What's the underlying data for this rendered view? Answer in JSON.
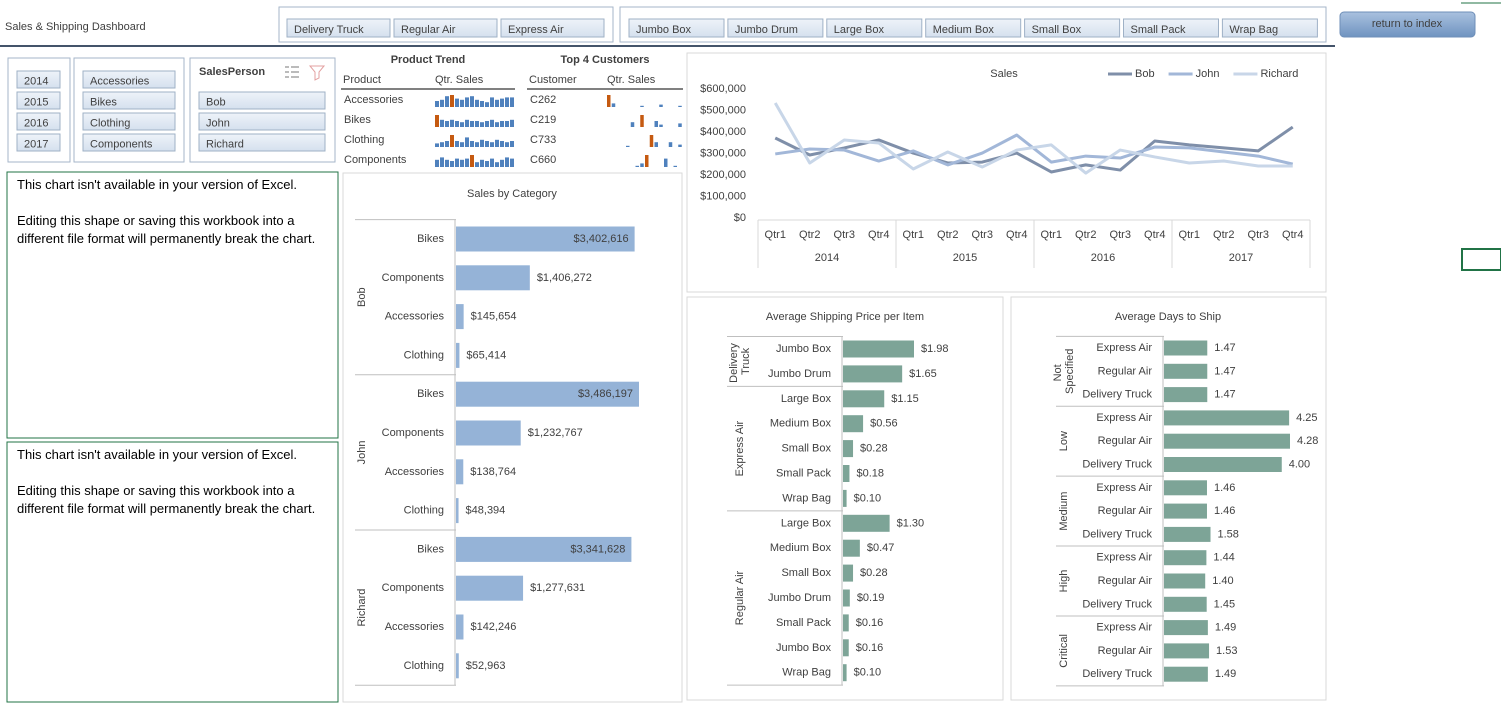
{
  "header": {
    "title": "Sales & Shipping Dashboard",
    "button": "return to index"
  },
  "slicers": {
    "ship_mode": [
      "Delivery Truck",
      "Regular Air",
      "Express Air"
    ],
    "container": [
      "Jumbo Box",
      "Jumbo Drum",
      "Large Box",
      "Medium Box",
      "Small Box",
      "Small Pack",
      "Wrap Bag"
    ],
    "year": [
      "2014",
      "2015",
      "2016",
      "2017"
    ],
    "category": [
      "Accessories",
      "Bikes",
      "Clothing",
      "Components"
    ],
    "salesperson": {
      "title": "SalesPerson",
      "items": [
        "Bob",
        "John",
        "Richard"
      ]
    }
  },
  "product_trend": {
    "title": "Product Trend",
    "columns": [
      "Product",
      "Qtr. Sales"
    ],
    "rows": [
      {
        "label": "Accessories",
        "trend": [
          5,
          6,
          9,
          10,
          7,
          6,
          8,
          9,
          6,
          5,
          4,
          8,
          6,
          7,
          8,
          8
        ]
      },
      {
        "label": "Bikes",
        "trend": [
          10,
          6,
          5,
          6,
          5,
          4,
          6,
          5,
          5,
          4,
          5,
          6,
          4,
          5,
          5,
          6
        ]
      },
      {
        "label": "Clothing",
        "trend": [
          3,
          4,
          5,
          10,
          5,
          4,
          8,
          5,
          4,
          6,
          5,
          4,
          6,
          5,
          4,
          5
        ]
      },
      {
        "label": "Components",
        "trend": [
          6,
          8,
          6,
          5,
          7,
          6,
          7,
          10,
          4,
          6,
          5,
          7,
          4,
          6,
          8,
          7
        ]
      }
    ]
  },
  "top_customers": {
    "title": "Top 4 Customers",
    "columns": [
      "Customer",
      "Qtr. Sales"
    ],
    "rows": [
      {
        "label": "C262",
        "trend": [
          10,
          3,
          null,
          null,
          null,
          null,
          null,
          1,
          null,
          null,
          null,
          2,
          null,
          null,
          null,
          1
        ]
      },
      {
        "label": "C219",
        "trend": [
          null,
          null,
          null,
          null,
          null,
          4,
          null,
          10,
          null,
          null,
          5,
          2,
          null,
          null,
          null,
          3
        ]
      },
      {
        "label": "C733",
        "trend": [
          null,
          null,
          null,
          null,
          1,
          null,
          null,
          null,
          null,
          10,
          4,
          null,
          null,
          4,
          null,
          2
        ]
      },
      {
        "label": "C660",
        "trend": [
          null,
          null,
          null,
          null,
          null,
          null,
          1,
          3,
          10,
          null,
          null,
          null,
          7,
          null,
          1,
          null
        ]
      }
    ]
  },
  "unavailable_charts": [
    {
      "line1": "This chart isn't available in your version of Excel.",
      "line2": "Editing this shape or saving this workbook into a different file format will permanently break the chart."
    },
    {
      "line1": "This chart isn't available in your version of Excel.",
      "line2": "Editing this shape or saving this workbook into a different file format will permanently break the chart."
    }
  ],
  "chart_data": [
    {
      "type": "bar",
      "orientation": "horizontal",
      "title": "Sales by Category",
      "color": "#95b3d7",
      "groups": [
        {
          "name": "Bob",
          "categories": [
            "Bikes",
            "Components",
            "Accessories",
            "Clothing"
          ],
          "values": [
            3402616,
            1406272,
            145654,
            65414
          ],
          "value_labels": [
            "$3,402,616",
            "$1,406,272",
            "$145,654",
            "$65,414"
          ]
        },
        {
          "name": "John",
          "categories": [
            "Bikes",
            "Components",
            "Accessories",
            "Clothing"
          ],
          "values": [
            3486197,
            1232767,
            138764,
            48394
          ],
          "value_labels": [
            "$3,486,197",
            "$1,232,767",
            "$138,764",
            "$48,394"
          ]
        },
        {
          "name": "Richard",
          "categories": [
            "Bikes",
            "Components",
            "Accessories",
            "Clothing"
          ],
          "values": [
            3341628,
            1277631,
            142246,
            52963
          ],
          "value_labels": [
            "$3,341,628",
            "$1,277,631",
            "$142,246",
            "$52,963"
          ]
        }
      ]
    },
    {
      "type": "line",
      "title": "Sales",
      "legend": "top-right",
      "grid": false,
      "categories": [
        "Qtr1",
        "Qtr2",
        "Qtr3",
        "Qtr4",
        "Qtr1",
        "Qtr2",
        "Qtr3",
        "Qtr4",
        "Qtr1",
        "Qtr2",
        "Qtr3",
        "Qtr4",
        "Qtr1",
        "Qtr2",
        "Qtr3",
        "Qtr4"
      ],
      "category_groups": [
        "2014",
        "2015",
        "2016",
        "2017"
      ],
      "ylim": [
        0,
        600000
      ],
      "yticks": [
        {
          "value": 0,
          "label": "$0"
        },
        {
          "value": 100000,
          "label": "$100,000"
        },
        {
          "value": 200000,
          "label": "$200,000"
        },
        {
          "value": 300000,
          "label": "$300,000"
        },
        {
          "value": 400000,
          "label": "$400,000"
        },
        {
          "value": 500000,
          "label": "$500,000"
        },
        {
          "value": 600000,
          "label": "$600,000"
        }
      ],
      "series": [
        {
          "name": "Bob",
          "color": "#7f8fa9",
          "values": [
            372000,
            293000,
            326000,
            363000,
            302000,
            256000,
            260000,
            302000,
            214000,
            247000,
            223000,
            358000,
            340000,
            326000,
            312000,
            423000
          ]
        },
        {
          "name": "John",
          "color": "#a2b7d8",
          "values": [
            298000,
            321000,
            316000,
            265000,
            312000,
            247000,
            302000,
            386000,
            260000,
            288000,
            279000,
            330000,
            326000,
            307000,
            288000,
            251000
          ]
        },
        {
          "name": "Richard",
          "color": "#c8d6e8",
          "values": [
            535000,
            256000,
            363000,
            349000,
            228000,
            307000,
            237000,
            316000,
            340000,
            209000,
            316000,
            284000,
            256000,
            265000,
            242000,
            242000
          ]
        }
      ]
    },
    {
      "type": "bar",
      "orientation": "horizontal",
      "title": "Average Shipping Price per Item",
      "color": "#7da497",
      "groups": [
        {
          "name": "Delivery Truck",
          "categories": [
            "Jumbo Box",
            "Jumbo Drum"
          ],
          "values": [
            1.98,
            1.65
          ],
          "value_labels": [
            "$1.98",
            "$1.65"
          ]
        },
        {
          "name": "Express Air",
          "categories": [
            "Large Box",
            "Medium Box",
            "Small Box",
            "Small Pack",
            "Wrap Bag"
          ],
          "values": [
            1.15,
            0.56,
            0.28,
            0.18,
            0.1
          ],
          "value_labels": [
            "$1.15",
            "$0.56",
            "$0.28",
            "$0.18",
            "$0.10"
          ]
        },
        {
          "name": "Regular Air",
          "categories": [
            "Large Box",
            "Medium Box",
            "Small Box",
            "Jumbo Drum",
            "Small Pack",
            "Jumbo Box",
            "Wrap Bag"
          ],
          "values": [
            1.3,
            0.47,
            0.28,
            0.19,
            0.16,
            0.16,
            0.1
          ],
          "value_labels": [
            "$1.30",
            "$0.47",
            "$0.28",
            "$0.19",
            "$0.16",
            "$0.16",
            "$0.10"
          ]
        }
      ]
    },
    {
      "type": "bar",
      "orientation": "horizontal",
      "title": "Average Days to Ship",
      "color": "#7da497",
      "groups": [
        {
          "name": "Not Specified",
          "categories": [
            "Express Air",
            "Regular Air",
            "Delivery Truck"
          ],
          "values": [
            1.47,
            1.47,
            1.47
          ],
          "value_labels": [
            "1.47",
            "1.47",
            "1.47"
          ]
        },
        {
          "name": "Low",
          "categories": [
            "Express Air",
            "Regular Air",
            "Delivery Truck"
          ],
          "values": [
            4.25,
            4.28,
            4
          ],
          "value_labels": [
            "4.25",
            "4.28",
            "4.00"
          ]
        },
        {
          "name": "Medium",
          "categories": [
            "Express Air",
            "Regular Air",
            "Delivery Truck"
          ],
          "values": [
            1.46,
            1.46,
            1.58
          ],
          "value_labels": [
            "1.46",
            "1.46",
            "1.58"
          ]
        },
        {
          "name": "High",
          "categories": [
            "Express Air",
            "Regular Air",
            "Delivery Truck"
          ],
          "values": [
            1.44,
            1.4,
            1.45
          ],
          "value_labels": [
            "1.44",
            "1.40",
            "1.45"
          ]
        },
        {
          "name": "Critical",
          "categories": [
            "Express Air",
            "Regular Air",
            "Delivery Truck"
          ],
          "values": [
            1.49,
            1.53,
            1.49
          ],
          "value_labels": [
            "1.49",
            "1.53",
            "1.49"
          ]
        }
      ]
    }
  ]
}
